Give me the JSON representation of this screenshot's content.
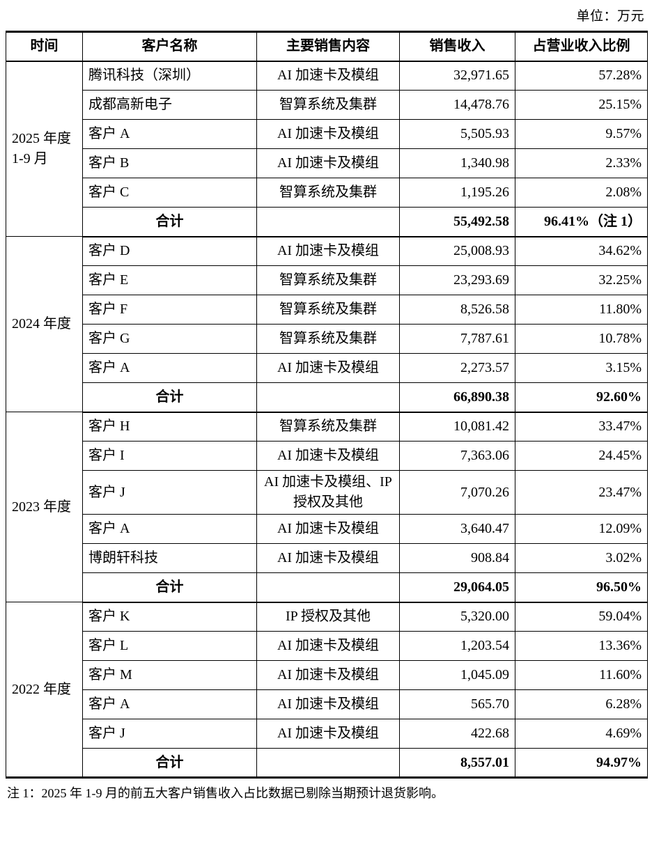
{
  "unit_label": "单位：万元",
  "table": {
    "headers": [
      "时间",
      "客户名称",
      "主要销售内容",
      "销售收入",
      "占营业收入比例"
    ],
    "groups": [
      {
        "period_lines": [
          "2025 年度",
          "1-9 月"
        ],
        "rows": [
          {
            "customer": "腾讯科技（深圳）",
            "content": "AI 加速卡及模组",
            "revenue": "32,971.65",
            "ratio": "57.28%"
          },
          {
            "customer": "成都高新电子",
            "content": "智算系统及集群",
            "revenue": "14,478.76",
            "ratio": "25.15%"
          },
          {
            "customer": "客户 A",
            "content": "AI 加速卡及模组",
            "revenue": "5,505.93",
            "ratio": "9.57%"
          },
          {
            "customer": "客户 B",
            "content": "AI 加速卡及模组",
            "revenue": "1,340.98",
            "ratio": "2.33%"
          },
          {
            "customer": "客户 C",
            "content": "智算系统及集群",
            "revenue": "1,195.26",
            "ratio": "2.08%"
          }
        ],
        "total": {
          "label": "合计",
          "revenue": "55,492.58",
          "ratio": "96.41%（注 1）"
        }
      },
      {
        "period_lines": [
          "2024 年度"
        ],
        "rows": [
          {
            "customer": "客户 D",
            "content": "AI 加速卡及模组",
            "revenue": "25,008.93",
            "ratio": "34.62%"
          },
          {
            "customer": "客户 E",
            "content": "智算系统及集群",
            "revenue": "23,293.69",
            "ratio": "32.25%"
          },
          {
            "customer": "客户 F",
            "content": "智算系统及集群",
            "revenue": "8,526.58",
            "ratio": "11.80%"
          },
          {
            "customer": "客户 G",
            "content": "智算系统及集群",
            "revenue": "7,787.61",
            "ratio": "10.78%"
          },
          {
            "customer": "客户 A",
            "content": "AI 加速卡及模组",
            "revenue": "2,273.57",
            "ratio": "3.15%"
          }
        ],
        "total": {
          "label": "合计",
          "revenue": "66,890.38",
          "ratio": "92.60%"
        }
      },
      {
        "period_lines": [
          "2023 年度"
        ],
        "rows": [
          {
            "customer": "客户 H",
            "content": "智算系统及集群",
            "revenue": "10,081.42",
            "ratio": "33.47%"
          },
          {
            "customer": "客户 I",
            "content": "AI 加速卡及模组",
            "revenue": "7,363.06",
            "ratio": "24.45%"
          },
          {
            "customer": "客户 J",
            "content": "AI 加速卡及模组、IP 授权及其他",
            "revenue": "7,070.26",
            "ratio": "23.47%"
          },
          {
            "customer": "客户 A",
            "content": "AI 加速卡及模组",
            "revenue": "3,640.47",
            "ratio": "12.09%"
          },
          {
            "customer": "博朗轩科技",
            "content": "AI 加速卡及模组",
            "revenue": "908.84",
            "ratio": "3.02%"
          }
        ],
        "total": {
          "label": "合计",
          "revenue": "29,064.05",
          "ratio": "96.50%"
        }
      },
      {
        "period_lines": [
          "2022 年度"
        ],
        "rows": [
          {
            "customer": "客户 K",
            "content": "IP 授权及其他",
            "revenue": "5,320.00",
            "ratio": "59.04%"
          },
          {
            "customer": "客户 L",
            "content": "AI 加速卡及模组",
            "revenue": "1,203.54",
            "ratio": "13.36%"
          },
          {
            "customer": "客户 M",
            "content": "AI 加速卡及模组",
            "revenue": "1,045.09",
            "ratio": "11.60%"
          },
          {
            "customer": "客户 A",
            "content": "AI 加速卡及模组",
            "revenue": "565.70",
            "ratio": "6.28%"
          },
          {
            "customer": "客户 J",
            "content": "AI 加速卡及模组",
            "revenue": "422.68",
            "ratio": "4.69%"
          }
        ],
        "total": {
          "label": "合计",
          "revenue": "8,557.01",
          "ratio": "94.97%"
        }
      }
    ]
  },
  "footnote": "注 1：2025 年 1-9 月的前五大客户销售收入占比数据已剔除当期预计退货影响。"
}
